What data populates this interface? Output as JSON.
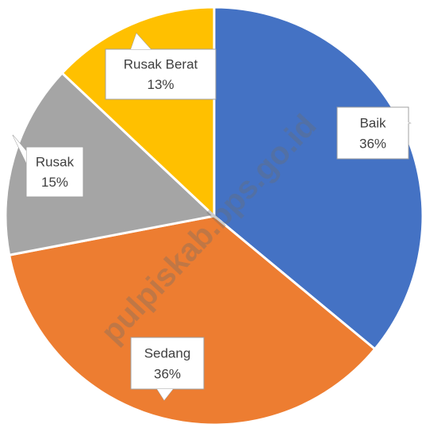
{
  "chart_data": {
    "type": "pie",
    "categories": [
      "Baik",
      "Sedang",
      "Rusak",
      "Rusak Berat"
    ],
    "values": [
      36,
      36,
      15,
      13
    ],
    "value_labels": [
      "36%",
      "36%",
      "15%",
      "13%"
    ],
    "colors": [
      "#4472c4",
      "#ed7d31",
      "#a5a5a5",
      "#ffc000"
    ],
    "watermark": "pulpiskab.bps.go.id"
  }
}
